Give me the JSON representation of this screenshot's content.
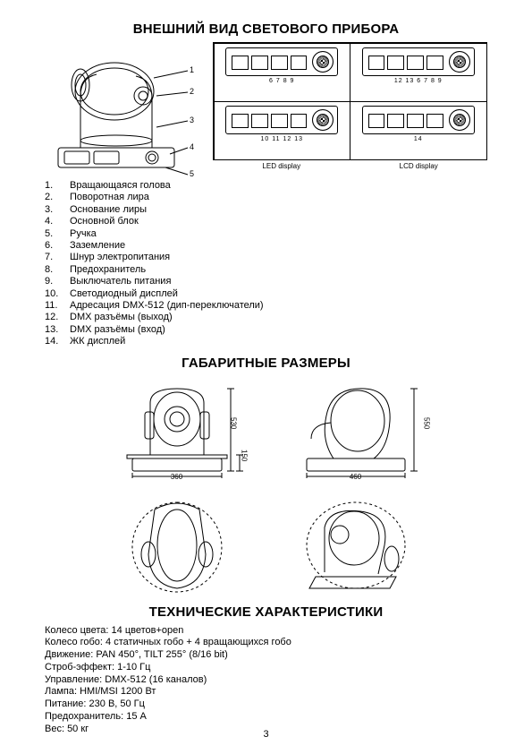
{
  "heading_appearance": "ВНЕШНИЙ ВИД СВЕТОВОГО ПРИБОРА",
  "heading_dimensions": "ГАБАРИТНЫЕ РАЗМЕРЫ",
  "heading_specs": "ТЕХНИЧЕСКИЕ ХАРАКТЕРИСТИКИ",
  "panel_nums": {
    "tl": "6  7  8   9",
    "tr": "12     13  6 7  8    9",
    "bl": "10  11 12     13",
    "br": "14"
  },
  "panel_caption_left": "LED display",
  "panel_caption_right": "LCD display",
  "parts": [
    {
      "n": "1.",
      "t": "Вращающаяся голова"
    },
    {
      "n": "2.",
      "t": "Поворотная лира"
    },
    {
      "n": "3.",
      "t": "Основание лиры"
    },
    {
      "n": "4.",
      "t": "Основной блок"
    },
    {
      "n": "5.",
      "t": "Ручка"
    },
    {
      "n": "6.",
      "t": "Заземление"
    },
    {
      "n": "7.",
      "t": "Шнур электропитания"
    },
    {
      "n": "8.",
      "t": "Предохранитель"
    },
    {
      "n": "9.",
      "t": "Выключатель питания"
    },
    {
      "n": "10.",
      "t": "Светодиодный дисплей"
    },
    {
      "n": "11.",
      "t": "Адресация DMX-512 (дип-переключатели)"
    },
    {
      "n": "12.",
      "t": "DMX разъёмы (выход)"
    },
    {
      "n": "13.",
      "t": "DMX разъёмы (вход)"
    },
    {
      "n": "14.",
      "t": "ЖК дисплей"
    }
  ],
  "callouts": {
    "c1": "1",
    "c2": "2",
    "c3": "3",
    "c4": "4",
    "c5": "5"
  },
  "dims": {
    "front_w": "360",
    "front_h": "530",
    "front_base_h": "150",
    "side_w": "460",
    "side_h": "550"
  },
  "specs": [
    "Колесо цвета: 14 цветов+open",
    "Колесо гобо: 4 статичных гобо + 4 вращающихся гобо",
    "Движение: PAN 450°, TILT 255° (8/16 bit)",
    "Строб-эффект: 1-10 Гц",
    "Управление: DMX-512 (16 каналов)",
    "Лампа: HMI/MSI 1200 Вт",
    "Питание: 230 В, 50 Гц",
    "Предохранитель: 15 А",
    "Вес: 50 кг"
  ],
  "page_number": "3"
}
